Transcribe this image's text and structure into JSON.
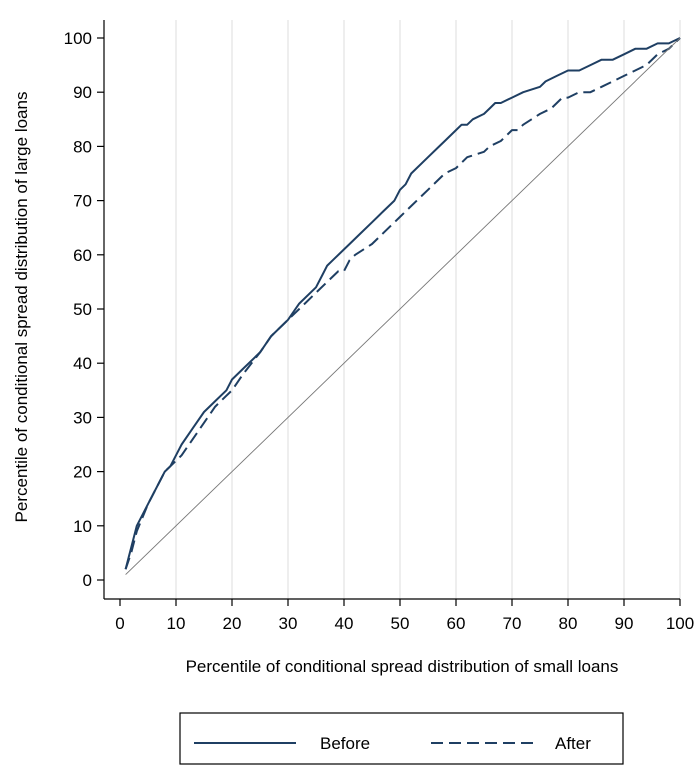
{
  "chart_data": {
    "type": "line",
    "xlabel": "Percentile of conditional spread distribution of small loans",
    "ylabel": "Percentile of conditional spread distribution of large loans",
    "xlim": [
      0,
      100
    ],
    "ylim": [
      0,
      100
    ],
    "xticks": [
      0,
      10,
      20,
      30,
      40,
      50,
      60,
      70,
      80,
      90,
      100
    ],
    "yticks": [
      0,
      10,
      20,
      30,
      40,
      50,
      60,
      70,
      80,
      90,
      100
    ],
    "grid": "vertical",
    "legend_position": "bottom",
    "series": [
      {
        "name": "Before",
        "style": "solid",
        "color": "#1f3f63",
        "x": [
          1,
          2,
          3,
          5,
          7,
          8,
          9,
          10,
          11,
          13,
          15,
          17,
          19,
          20,
          22,
          25,
          27,
          30,
          32,
          35,
          36,
          37,
          38,
          40,
          41,
          43,
          45,
          47,
          48,
          49,
          50,
          51,
          52,
          55,
          57,
          58,
          60,
          61,
          62,
          63,
          65,
          66,
          67,
          68,
          70,
          72,
          75,
          76,
          78,
          80,
          82,
          84,
          86,
          88,
          90,
          92,
          94,
          96,
          98,
          100
        ],
        "y": [
          2,
          6,
          10,
          14,
          18,
          20,
          21,
          23,
          25,
          28,
          31,
          33,
          35,
          37,
          39,
          42,
          45,
          48,
          51,
          54,
          56,
          58,
          59,
          61,
          62,
          64,
          66,
          68,
          69,
          70,
          72,
          73,
          75,
          78,
          80,
          81,
          83,
          84,
          84,
          85,
          86,
          87,
          88,
          88,
          89,
          90,
          91,
          92,
          93,
          94,
          94,
          95,
          96,
          96,
          97,
          98,
          98,
          99,
          99,
          100
        ]
      },
      {
        "name": "After",
        "style": "dashed",
        "color": "#1f3f63",
        "x": [
          1,
          2,
          3,
          5,
          7,
          8,
          9,
          10,
          11,
          13,
          15,
          17,
          19,
          20,
          22,
          25,
          27,
          30,
          33,
          35,
          37,
          38,
          39,
          40,
          41,
          42,
          45,
          48,
          50,
          52,
          55,
          58,
          60,
          61,
          62,
          65,
          66,
          68,
          70,
          71,
          72,
          75,
          77,
          79,
          80,
          82,
          84,
          86,
          88,
          90,
          92,
          94,
          96,
          98,
          100
        ],
        "y": [
          2,
          5,
          9,
          14,
          18,
          20,
          21,
          22,
          23,
          26,
          29,
          32,
          34,
          35,
          38,
          42,
          45,
          48,
          51,
          53,
          55,
          56,
          57,
          57,
          59,
          60,
          62,
          65,
          67,
          69,
          72,
          75,
          76,
          77,
          78,
          79,
          80,
          81,
          83,
          83,
          84,
          86,
          87,
          89,
          89,
          90,
          90,
          91,
          92,
          93,
          94,
          95,
          97,
          98,
          100
        ]
      },
      {
        "name": "",
        "style": "thin",
        "color": "#777777",
        "x": [
          1,
          100
        ],
        "y": [
          1,
          100
        ]
      }
    ]
  }
}
